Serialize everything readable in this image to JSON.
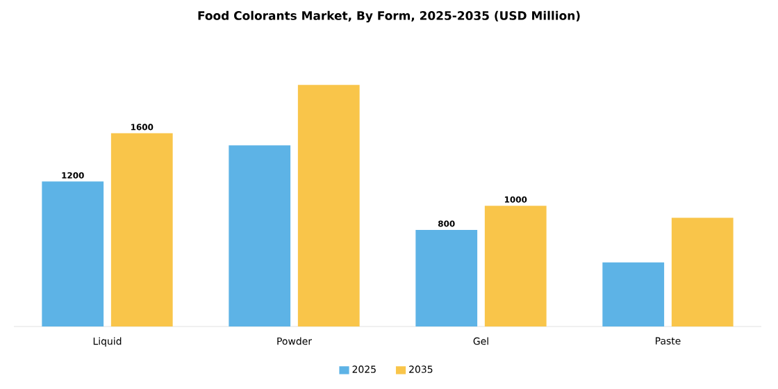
{
  "chart_data": {
    "type": "bar",
    "title": "Food Colorants Market, By Form, 2025-2035 (USD Million)",
    "categories": [
      "Liquid",
      "Powder",
      "Gel",
      "Paste"
    ],
    "series": [
      {
        "name": "2025",
        "color": "#5db3e6",
        "values": [
          1200,
          1500,
          800,
          530
        ],
        "value_labels": [
          "1200",
          null,
          "800",
          null
        ]
      },
      {
        "name": "2035",
        "color": "#f9c54a",
        "values": [
          1600,
          2000,
          1000,
          900
        ],
        "value_labels": [
          "1600",
          null,
          "1000",
          null
        ]
      }
    ],
    "ylim": [
      0,
      2000
    ],
    "tick_labels": "x",
    "grid": false,
    "legend": "bottom"
  }
}
